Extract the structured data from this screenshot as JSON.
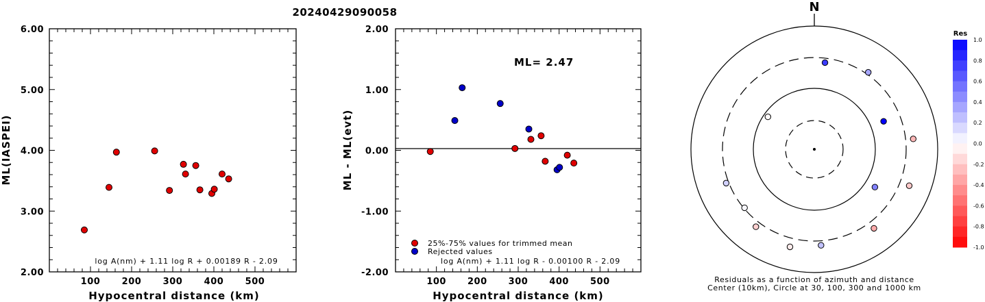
{
  "figure_title": "20240429090058",
  "chart_data": [
    {
      "type": "scatter",
      "xlabel": "Hypocentral distance (km)",
      "ylabel": "ML(IASPEI)",
      "xlim": [
        0,
        600
      ],
      "ylim": [
        2.0,
        6.0
      ],
      "x_ticks": [
        100,
        200,
        300,
        400,
        500
      ],
      "y_ticks": [
        "2.00",
        "3.00",
        "4.00",
        "5.00",
        "6.00"
      ],
      "annotation": "log A(nm) + 1.11 log R + 0.00189 R - 2.09",
      "marker_color": "#e00000",
      "points": [
        {
          "x": 85,
          "y": 2.69
        },
        {
          "x": 145,
          "y": 3.39
        },
        {
          "x": 163,
          "y": 3.97
        },
        {
          "x": 256,
          "y": 3.99
        },
        {
          "x": 292,
          "y": 3.34
        },
        {
          "x": 326,
          "y": 3.77
        },
        {
          "x": 331,
          "y": 3.61
        },
        {
          "x": 356,
          "y": 3.75
        },
        {
          "x": 366,
          "y": 3.35
        },
        {
          "x": 395,
          "y": 3.29
        },
        {
          "x": 401,
          "y": 3.36
        },
        {
          "x": 420,
          "y": 3.61
        },
        {
          "x": 436,
          "y": 3.53
        }
      ]
    },
    {
      "type": "scatter",
      "xlabel": "Hypocentral distance (km)",
      "ylabel": "ML - ML(evt)",
      "xlim": [
        0,
        600
      ],
      "ylim": [
        -2.0,
        2.0
      ],
      "x_ticks": [
        100,
        200,
        300,
        400,
        500
      ],
      "y_ticks": [
        "-2.00",
        "-1.00",
        "0.00",
        "1.00",
        "2.00"
      ],
      "reference_line": 0,
      "ml_label": "ML= 2.47",
      "annotation": "log A(nm) + 1.11 log R - 0.00100 R - 2.09",
      "legend_position": "bottom-left",
      "series": [
        {
          "name": "25%-75% values for trimmed mean",
          "color": "#e00000",
          "points": [
            {
              "x": 85,
              "y": -0.02
            },
            {
              "x": 292,
              "y": 0.03
            },
            {
              "x": 331,
              "y": 0.18
            },
            {
              "x": 356,
              "y": 0.24
            },
            {
              "x": 366,
              "y": -0.18
            },
            {
              "x": 420,
              "y": -0.08
            },
            {
              "x": 436,
              "y": -0.21
            }
          ]
        },
        {
          "name": "Rejected values",
          "color": "#0000c8",
          "points": [
            {
              "x": 145,
              "y": 0.49
            },
            {
              "x": 163,
              "y": 1.03
            },
            {
              "x": 256,
              "y": 0.77
            },
            {
              "x": 326,
              "y": 0.35
            },
            {
              "x": 395,
              "y": -0.32
            },
            {
              "x": 401,
              "y": -0.28
            }
          ]
        }
      ]
    },
    {
      "type": "polar-scatter",
      "north_label": "N",
      "caption_line1": "Residuals as a function of azimuth and distance",
      "caption_line2": "Center (10km), Circle at 30, 100, 300 and 1000 km",
      "rings_km": [
        30,
        100,
        300,
        1000
      ],
      "colorbar_title": "Res",
      "colorbar_labels": [
        "1.0",
        "0.8",
        "0.6",
        "0.4",
        "0.2",
        "0.0",
        "-0.2",
        "-0.4",
        "-0.6",
        "-0.8",
        "-1.0"
      ],
      "points": [
        {
          "azimuth_deg": 7,
          "distance_km": 256,
          "residual": 0.77
        },
        {
          "azimuth_deg": 35,
          "distance_km": 326,
          "residual": 0.35
        },
        {
          "azimuth_deg": 68,
          "distance_km": 163,
          "residual": 1.03
        },
        {
          "azimuth_deg": 84,
          "distance_km": 401,
          "residual": -0.28
        },
        {
          "azimuth_deg": 111,
          "distance_km": 436,
          "residual": -0.21
        },
        {
          "azimuth_deg": 122,
          "distance_km": 145,
          "residual": 0.49
        },
        {
          "azimuth_deg": 143,
          "distance_km": 395,
          "residual": -0.32
        },
        {
          "azimuth_deg": 176,
          "distance_km": 356,
          "residual": 0.24
        },
        {
          "azimuth_deg": 194,
          "distance_km": 420,
          "residual": -0.08
        },
        {
          "azimuth_deg": 217,
          "distance_km": 366,
          "residual": -0.18
        },
        {
          "azimuth_deg": 230,
          "distance_km": 292,
          "residual": 0.03
        },
        {
          "azimuth_deg": 249,
          "distance_km": 331,
          "residual": 0.18
        },
        {
          "azimuth_deg": 305,
          "distance_km": 85,
          "residual": -0.02
        }
      ]
    }
  ]
}
